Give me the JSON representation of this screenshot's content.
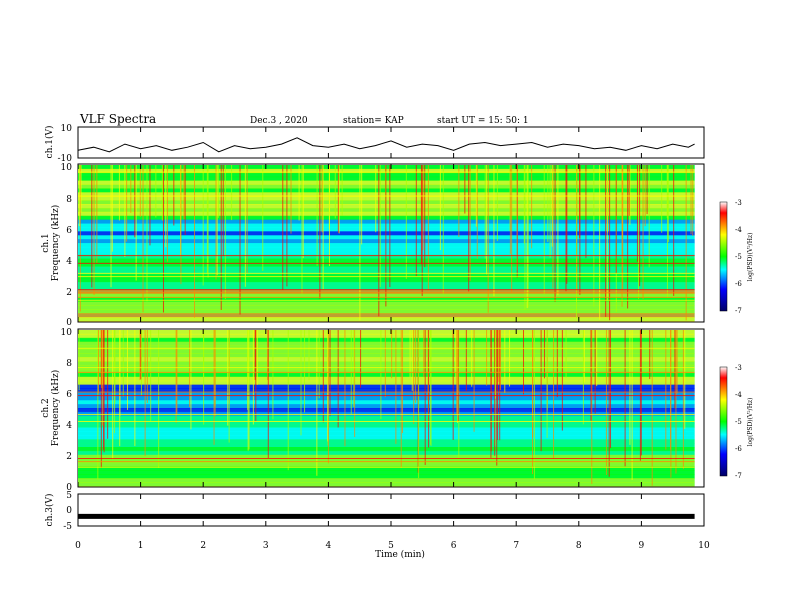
{
  "header": {
    "title": "VLF Spectra",
    "date": "Dec.3 , 2020",
    "station": "station= KAP",
    "start": "start UT = 15: 50: 1"
  },
  "chart_data": [
    {
      "type": "line",
      "panel": "ch1-voltage",
      "ylabel": "ch.1(V)",
      "ylim": [
        -10,
        10
      ],
      "yticks": [
        "10",
        "-10"
      ],
      "xlim": [
        0,
        10
      ],
      "series": [
        {
          "x": [
            0,
            0.25,
            0.5,
            0.75,
            1,
            1.25,
            1.5,
            1.75,
            2,
            2.25,
            2.5,
            2.75,
            3,
            3.25,
            3.5,
            3.75,
            4,
            4.25,
            4.5,
            4.75,
            5,
            5.25,
            5.5,
            5.75,
            6,
            6.25,
            6.5,
            6.75,
            7,
            7.25,
            7.5,
            7.75,
            8,
            8.25,
            8.5,
            8.75,
            9,
            9.25,
            9.5,
            9.75,
            9.85
          ],
          "values": [
            -5,
            -3,
            -6,
            -1,
            -4,
            -2,
            -5,
            -3,
            0,
            -6,
            -2,
            -4,
            -3,
            -1,
            3,
            -2,
            -3,
            -1,
            -4,
            -2,
            1,
            -3,
            -1,
            -2,
            -5,
            -1,
            0,
            -2,
            -1,
            0,
            -3,
            -1,
            -2,
            -4,
            -3,
            -5,
            -2,
            -4,
            -1,
            -3,
            -1
          ]
        }
      ]
    },
    {
      "type": "heatmap",
      "panel": "ch1-spectrogram",
      "ylabel_top": "ch.1",
      "ylabel": "Frequency (kHz)",
      "xlim": [
        0,
        9.85
      ],
      "ylim": [
        0,
        10
      ],
      "yticks": [
        "0",
        "2",
        "4",
        "6",
        "8",
        "10"
      ],
      "colorbar": {
        "label": "log(PSD)(V²/Hz)",
        "range": [
          -7,
          -3
        ],
        "ticks": [
          "-3",
          "-4",
          "-5",
          "-6",
          "-7"
        ]
      }
    },
    {
      "type": "heatmap",
      "panel": "ch2-spectrogram",
      "ylabel_top": "ch.2",
      "ylabel": "Frequency (kHz)",
      "xlim": [
        0,
        9.85
      ],
      "ylim": [
        0,
        10
      ],
      "yticks": [
        "0",
        "2",
        "4",
        "6",
        "8",
        "10"
      ],
      "colorbar": {
        "label": "log(PSD)(V²/Hz)",
        "range": [
          -7,
          -3
        ],
        "ticks": [
          "-3",
          "-4",
          "-5",
          "-6",
          "-7"
        ]
      }
    },
    {
      "type": "line",
      "panel": "ch3-voltage",
      "ylabel": "ch.3(V)",
      "ylim": [
        -5,
        5
      ],
      "yticks": [
        "5",
        "0",
        "-5"
      ],
      "xlim": [
        0,
        10
      ],
      "series": [
        {
          "x": [
            0,
            9.85
          ],
          "values": [
            -2,
            -2
          ]
        }
      ]
    }
  ],
  "xaxis": {
    "label": "Time (min)",
    "ticks": [
      "0",
      "1",
      "2",
      "3",
      "4",
      "5",
      "6",
      "7",
      "8",
      "9",
      "10"
    ]
  }
}
